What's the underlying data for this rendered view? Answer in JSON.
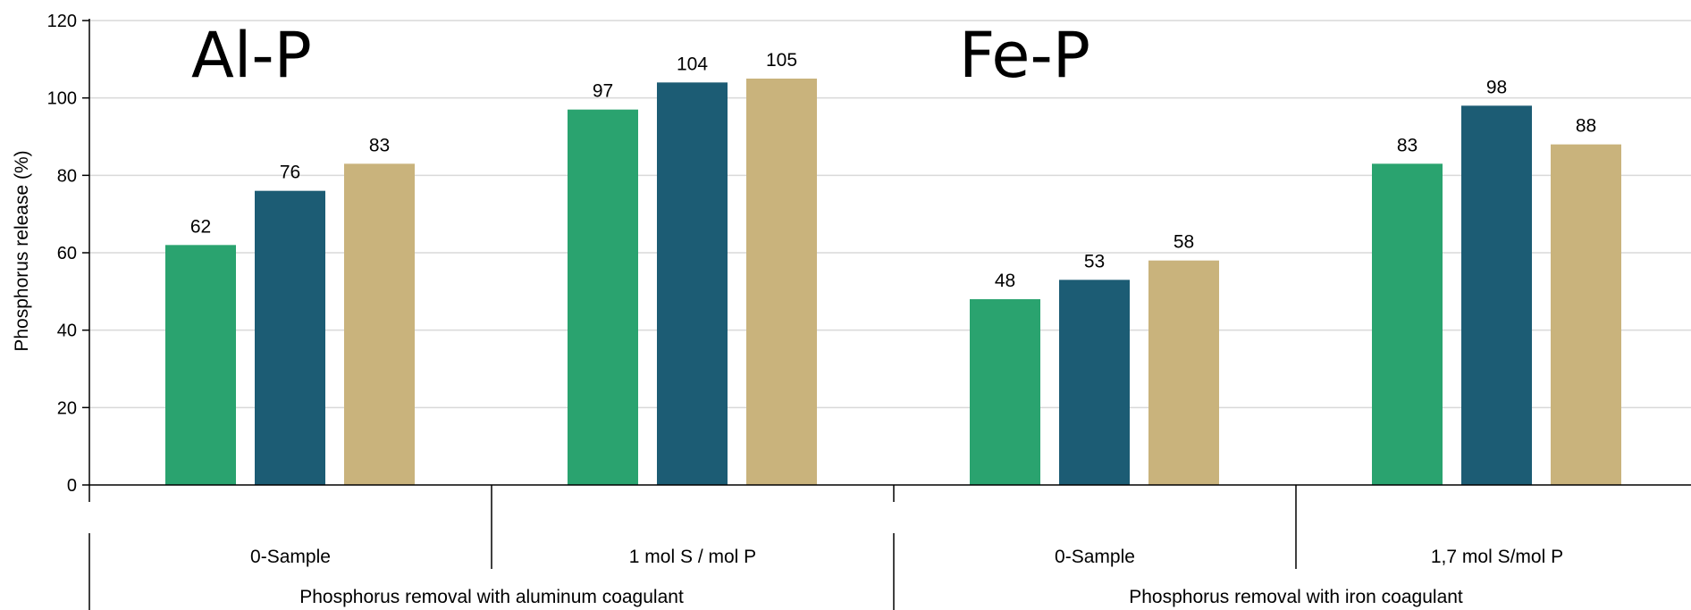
{
  "chart_data": {
    "type": "bar",
    "ylabel": "Phosphorus release (%)",
    "ylim": [
      0,
      120
    ],
    "yticks": [
      0,
      20,
      40,
      60,
      80,
      100,
      120
    ],
    "grid": true,
    "groups": [
      {
        "label": "Phosphorus removal with aluminum coagulant",
        "overlay_label": "Al-P",
        "categories": [
          {
            "label": "0-Sample",
            "values": [
              62,
              76,
              83
            ]
          },
          {
            "label": "1 mol S / mol P",
            "values": [
              97,
              104,
              105
            ]
          }
        ]
      },
      {
        "label": "Phosphorus removal with iron coagulant",
        "overlay_label": "Fe-P",
        "categories": [
          {
            "label": "0-Sample",
            "values": [
              48,
              53,
              58
            ]
          },
          {
            "label": "1,7 mol S/mol P",
            "values": [
              83,
              98,
              88
            ]
          }
        ]
      }
    ],
    "series_colors": [
      "#2aa36f",
      "#1c5c74",
      "#c9b37c"
    ]
  }
}
